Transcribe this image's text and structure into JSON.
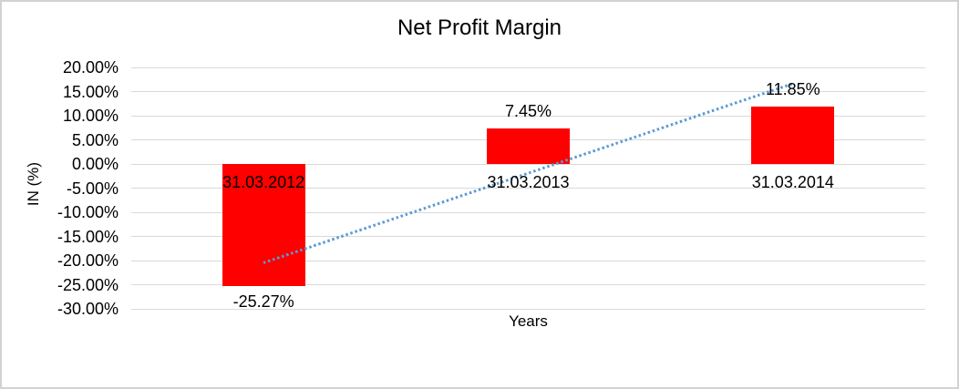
{
  "canvas": {
    "background": "#ffffff",
    "border_color": "#d2d2d2",
    "text_color": "#000000"
  },
  "chart_data": {
    "type": "bar",
    "title": "Net Profit Margin",
    "categories": [
      "31.03.2012",
      "31.03.2013",
      "31.03.2014"
    ],
    "values": [
      -25.27,
      7.45,
      11.85
    ],
    "data_labels": [
      "-25.27%",
      "7.45%",
      "11.85%"
    ],
    "xlabel": "Years",
    "ylabel": "IN (%)",
    "ylim": [
      -30,
      20
    ],
    "y_tick_step": 5,
    "y_ticks": [
      "20.00%",
      "15.00%",
      "10.00%",
      "5.00%",
      "0.00%",
      "-5.00%",
      "-10.00%",
      "-15.00%",
      "-20.00%",
      "-25.00%",
      "-30.00%"
    ],
    "grid": true,
    "legend": "none",
    "bar_color": "#ff0000",
    "gridline_color": "#d9d9d9",
    "trendline": {
      "type": "linear",
      "style": "dotted",
      "color": "#5b9bd5",
      "start_value_pct": -20.55,
      "end_value_pct": 16.57
    }
  }
}
